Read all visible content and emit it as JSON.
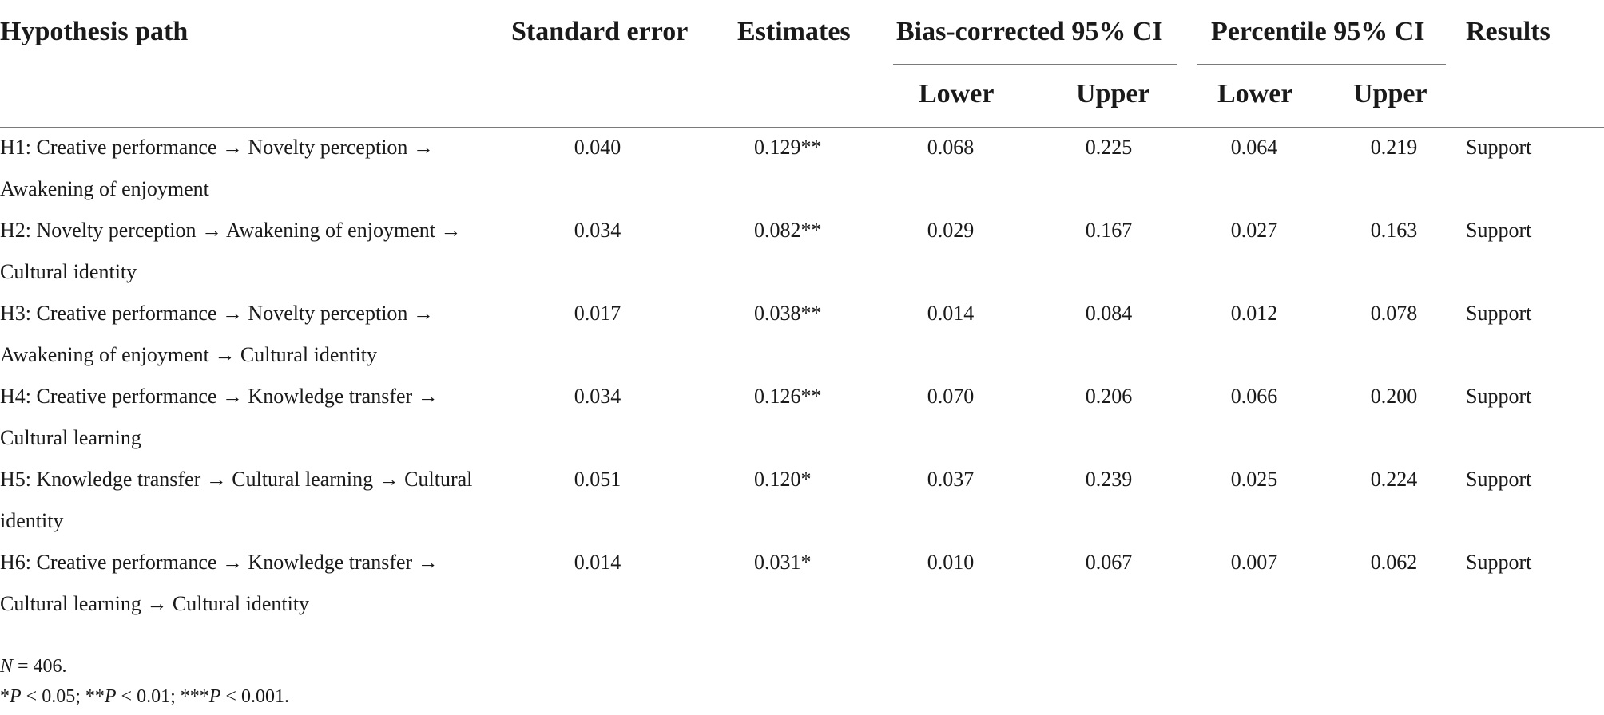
{
  "header": {
    "path": "Hypothesis path",
    "se": "Standard error",
    "est": "Estimates",
    "bc": "Bias-corrected 95% CI",
    "pct": "Percentile 95% CI",
    "results": "Results",
    "lower": "Lower",
    "upper": "Upper"
  },
  "rows": [
    {
      "path": "H1: Creative performance → Novelty perception → Awakening of enjoyment",
      "se": "0.040",
      "est": "0.129**",
      "bc_lower": "0.068",
      "bc_upper": "0.225",
      "p_lower": "0.064",
      "p_upper": "0.219",
      "result": "Support"
    },
    {
      "path": "H2: Novelty perception → Awakening of enjoyment → Cultural identity",
      "se": "0.034",
      "est": "0.082**",
      "bc_lower": "0.029",
      "bc_upper": "0.167",
      "p_lower": "0.027",
      "p_upper": "0.163",
      "result": "Support"
    },
    {
      "path": "H3: Creative performance → Novelty perception → Awakening of enjoyment → Cultural identity",
      "se": "0.017",
      "est": "0.038**",
      "bc_lower": "0.014",
      "bc_upper": "0.084",
      "p_lower": "0.012",
      "p_upper": "0.078",
      "result": "Support"
    },
    {
      "path": "H4: Creative performance → Knowledge transfer → Cultural learning",
      "se": "0.034",
      "est": "0.126**",
      "bc_lower": "0.070",
      "bc_upper": "0.206",
      "p_lower": "0.066",
      "p_upper": "0.200",
      "result": "Support"
    },
    {
      "path": "H5: Knowledge transfer → Cultural learning → Cultural identity",
      "se": "0.051",
      "est": "0.120*",
      "bc_lower": "0.037",
      "bc_upper": "0.239",
      "p_lower": "0.025",
      "p_upper": "0.224",
      "result": "Support"
    },
    {
      "path": "H6: Creative performance → Knowledge transfer → Cultural learning → Cultural identity",
      "se": "0.014",
      "est": "0.031*",
      "bc_lower": "0.010",
      "bc_upper": "0.067",
      "p_lower": "0.007",
      "p_upper": "0.062",
      "result": "Support"
    }
  ],
  "notes": {
    "n_var": "N",
    "n_value": " = 406.",
    "sig_1_stars": "*",
    "sig_1_var": "P",
    "sig_1_text": " < 0.05; ",
    "sig_2_stars": "**",
    "sig_2_var": "P",
    "sig_2_text": " < 0.01; ",
    "sig_3_stars": "***",
    "sig_3_var": "P",
    "sig_3_text": " < 0.001."
  }
}
